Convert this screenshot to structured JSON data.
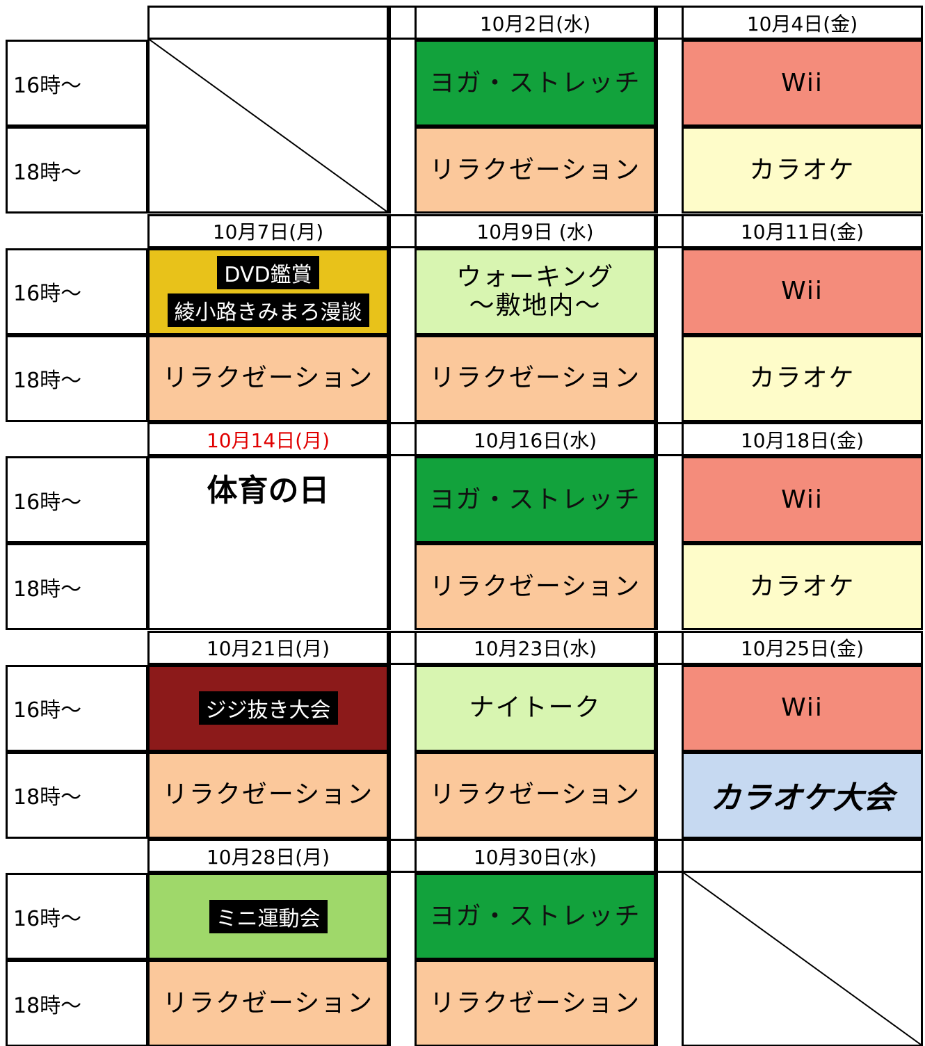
{
  "time_labels": [
    "16時〜",
    "18時〜"
  ],
  "weeks": [
    {
      "days": [
        {
          "cells": null
        },
        {
          "date": "10月2日(水)",
          "cells": [
            {
              "text": "ヨガ・ストレッチ",
              "color": "#12a23c"
            },
            {
              "text": "リラクゼーション",
              "color": "#fbc89b"
            }
          ]
        },
        {
          "date": "10月4日(金)",
          "cells": [
            {
              "text": "Wii",
              "color": "#f48c7b"
            },
            {
              "text": "カラオケ",
              "color": "#fefcc9"
            }
          ]
        }
      ]
    },
    {
      "days": [
        {
          "date": "10月7日(月)",
          "cells": [
            {
              "badges": [
                "DVD鑑賞",
                "綾小路きみまろ漫談"
              ],
              "color": "#e8c21a"
            },
            {
              "text": "リラクゼーション",
              "color": "#fbc89b"
            }
          ]
        },
        {
          "date": "10月9日 (水)",
          "cells": [
            {
              "text": "ウォーキング\n〜敷地内〜",
              "color": "#d8f5b1"
            },
            {
              "text": "リラクゼーション",
              "color": "#fbc89b"
            }
          ]
        },
        {
          "date": "10月11日(金)",
          "cells": [
            {
              "text": "Wii",
              "color": "#f48c7b"
            },
            {
              "text": "カラオケ",
              "color": "#fefcc9"
            }
          ]
        }
      ]
    },
    {
      "days": [
        {
          "date": "10月14日(月)",
          "date_color": "#e00000",
          "cells": [
            {
              "title": "体育の日",
              "color": "#ffffff"
            }
          ]
        },
        {
          "date": "10月16日(水)",
          "cells": [
            {
              "text": "ヨガ・ストレッチ",
              "color": "#12a23c"
            },
            {
              "text": "リラクゼーション",
              "color": "#fbc89b"
            }
          ]
        },
        {
          "date": "10月18日(金)",
          "cells": [
            {
              "text": "Wii",
              "color": "#f48c7b"
            },
            {
              "text": "カラオケ",
              "color": "#fefcc9"
            }
          ]
        }
      ]
    },
    {
      "days": [
        {
          "date": "10月21日(月)",
          "cells": [
            {
              "badges": [
                "ジジ抜き大会"
              ],
              "color": "#8c1a1a"
            },
            {
              "text": "リラクゼーション",
              "color": "#fbc89b"
            }
          ]
        },
        {
          "date": "10月23日(水)",
          "cells": [
            {
              "text": "ナイトーク",
              "color": "#d8f5b1"
            },
            {
              "text": "リラクゼーション",
              "color": "#fbc89b"
            }
          ]
        },
        {
          "date": "10月25日(金)",
          "cells": [
            {
              "text": "Wii",
              "color": "#f48c7b"
            },
            {
              "title": "カラオケ大会",
              "color": "#c6d9f1"
            }
          ]
        }
      ]
    },
    {
      "days": [
        {
          "date": "10月28日(月)",
          "cells": [
            {
              "badges": [
                "ミニ運動会"
              ],
              "color": "#9fd86a"
            },
            {
              "text": "リラクゼーション",
              "color": "#fbc89b"
            }
          ]
        },
        {
          "date": "10月30日(水)",
          "cells": [
            {
              "text": "ヨガ・ストレッチ",
              "color": "#12a23c"
            },
            {
              "text": "リラクゼーション",
              "color": "#fbc89b"
            }
          ]
        },
        {
          "cells": null
        }
      ]
    }
  ]
}
